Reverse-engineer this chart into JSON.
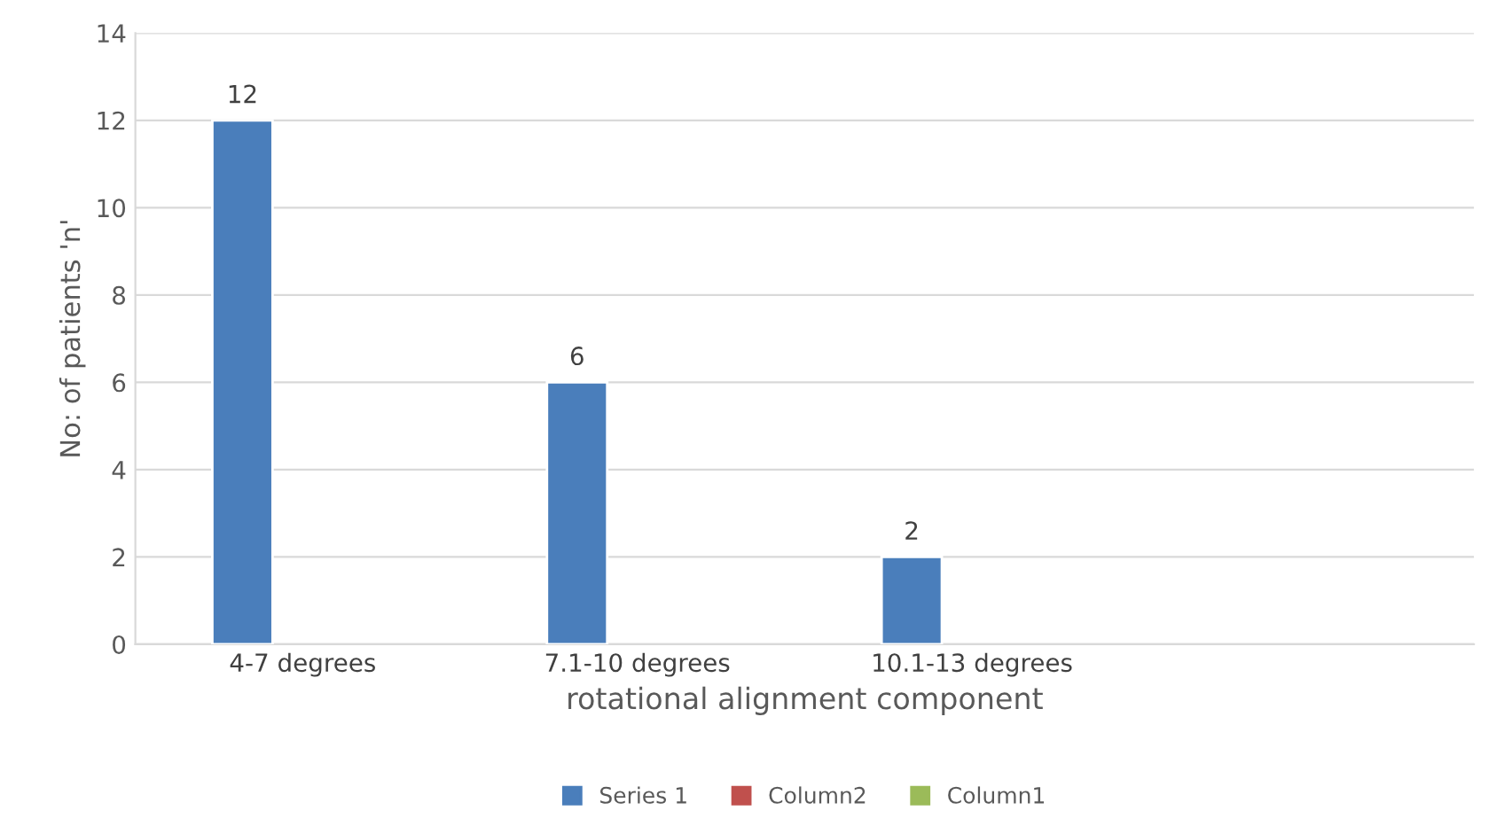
{
  "chart_data": {
    "type": "bar",
    "xlabel": "rotational alignment component",
    "ylabel": "No: of patients 'n'",
    "categories": [
      "4-7 degrees",
      "7.1-10 degrees",
      "10.1-13 degrees",
      null
    ],
    "series": [
      {
        "name": "Series 1",
        "color": "#4a7ebb",
        "values": [
          12,
          6,
          2,
          null
        ]
      },
      {
        "name": "Column2",
        "color": "#c0504d",
        "values": [
          null,
          null,
          null,
          null
        ]
      },
      {
        "name": "Column1",
        "color": "#9bbb59",
        "values": [
          null,
          null,
          null,
          null
        ]
      }
    ],
    "ylim": [
      0,
      14
    ],
    "yticks": [
      0,
      2,
      4,
      6,
      8,
      10,
      12,
      14
    ],
    "grid": "y",
    "legend": "bottom",
    "data_labels": true
  }
}
